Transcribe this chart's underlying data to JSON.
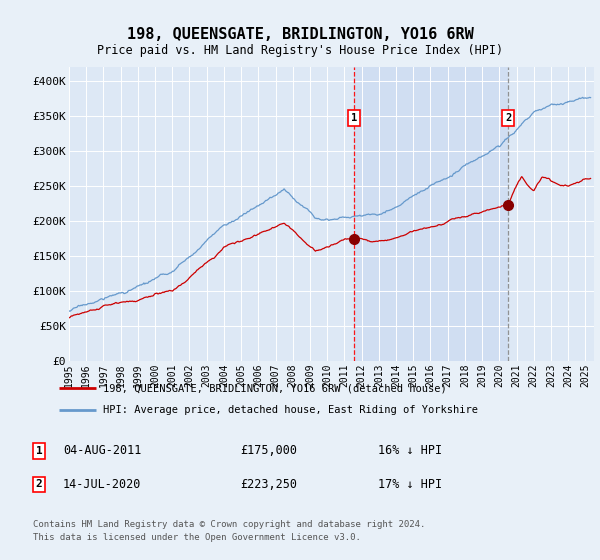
{
  "title": "198, QUEENSGATE, BRIDLINGTON, YO16 6RW",
  "subtitle": "Price paid vs. HM Land Registry's House Price Index (HPI)",
  "background_color": "#e8f0f8",
  "plot_bg_color": "#dde8f5",
  "grid_color": "#c8d8e8",
  "red_line_color": "#cc0000",
  "blue_line_color": "#6699cc",
  "shade_color": "#ccd8ee",
  "ylim": [
    0,
    420000
  ],
  "xlim_start": 1995.0,
  "xlim_end": 2025.5,
  "yticks": [
    0,
    50000,
    100000,
    150000,
    200000,
    250000,
    300000,
    350000,
    400000
  ],
  "ytick_labels": [
    "£0",
    "£50K",
    "£100K",
    "£150K",
    "£200K",
    "£250K",
    "£300K",
    "£350K",
    "£400K"
  ],
  "xticks": [
    1995,
    1996,
    1997,
    1998,
    1999,
    2000,
    2001,
    2002,
    2003,
    2004,
    2005,
    2006,
    2007,
    2008,
    2009,
    2010,
    2011,
    2012,
    2013,
    2014,
    2015,
    2016,
    2017,
    2018,
    2019,
    2020,
    2021,
    2022,
    2023,
    2024,
    2025
  ],
  "sale1_x": 2011.58,
  "sale1_y": 175000,
  "sale1_label": "1",
  "sale1_date": "04-AUG-2011",
  "sale1_price": "£175,000",
  "sale1_hpi": "16% ↓ HPI",
  "sale2_x": 2020.53,
  "sale2_y": 223250,
  "sale2_label": "2",
  "sale2_date": "14-JUL-2020",
  "sale2_price": "£223,250",
  "sale2_hpi": "17% ↓ HPI",
  "legend_line1": "198, QUEENSGATE, BRIDLINGTON, YO16 6RW (detached house)",
  "legend_line2": "HPI: Average price, detached house, East Riding of Yorkshire",
  "footer": "Contains HM Land Registry data © Crown copyright and database right 2024.\nThis data is licensed under the Open Government Licence v3.0."
}
